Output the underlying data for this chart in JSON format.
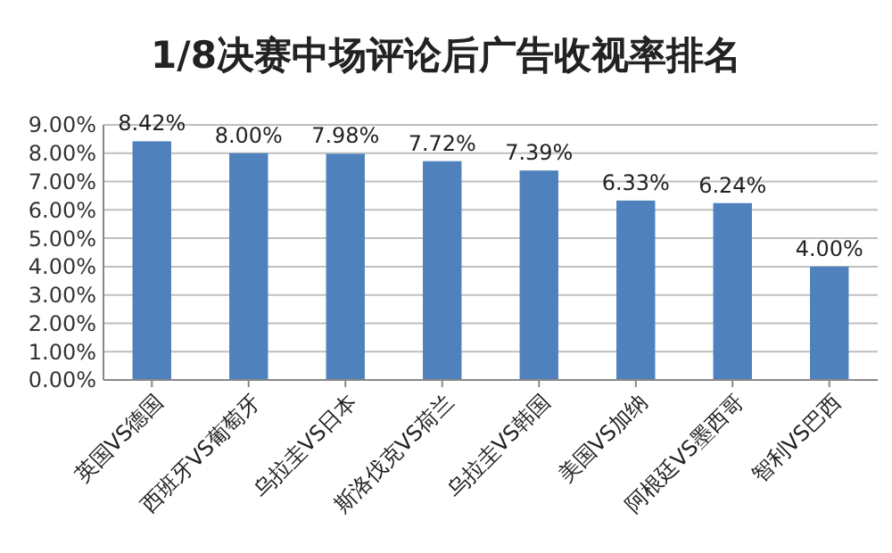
{
  "chart_data": {
    "type": "bar",
    "title": "1/8决赛中场评论后广告收视率排名",
    "categories": [
      "英国VS德国",
      "西班牙VS葡萄牙",
      "乌拉圭VS日本",
      "斯洛伐克VS荷兰",
      "乌拉圭VS韩国",
      "美国VS加纳",
      "阿根廷VS墨西哥",
      "智利VS巴西"
    ],
    "values": [
      8.42,
      8.0,
      7.98,
      7.72,
      7.39,
      6.33,
      6.24,
      4.0
    ],
    "value_labels": [
      "8.42%",
      "8.00%",
      "7.98%",
      "7.72%",
      "7.39%",
      "6.33%",
      "6.24%",
      "4.00%"
    ],
    "color": "#4f81bd",
    "ylim": [
      0,
      9
    ],
    "yticks": [
      {
        "value": 0,
        "label": "0.00%"
      },
      {
        "value": 1,
        "label": "1.00%"
      },
      {
        "value": 2,
        "label": "2.00%"
      },
      {
        "value": 3,
        "label": "3.00%"
      },
      {
        "value": 4,
        "label": "4.00%"
      },
      {
        "value": 5,
        "label": "5.00%"
      },
      {
        "value": 6,
        "label": "6.00%"
      },
      {
        "value": 7,
        "label": "7.00%"
      },
      {
        "value": 8,
        "label": "8.00%"
      },
      {
        "value": 9,
        "label": "9.00%"
      }
    ],
    "grid": "y"
  }
}
